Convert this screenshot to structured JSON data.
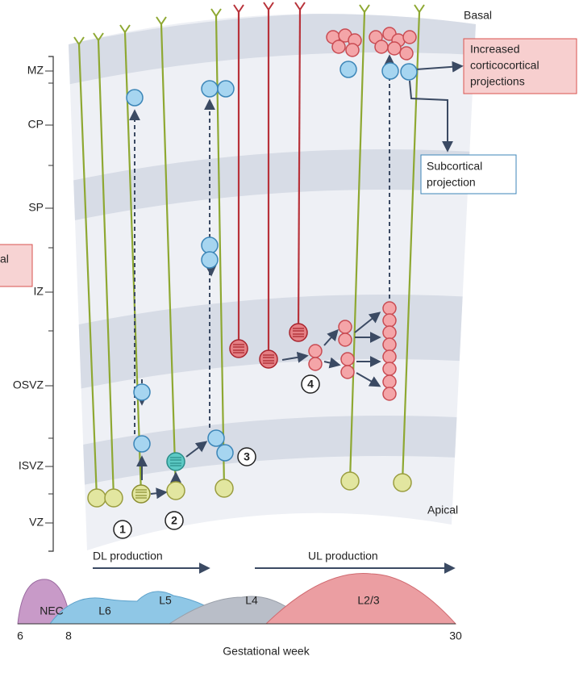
{
  "labels": {
    "basal": "Basal",
    "apical": "Apical",
    "cut_box": "al",
    "corticocortical": [
      "Increased",
      "corticocortical",
      "projections"
    ],
    "subcortical": [
      "Subcortical",
      "projection"
    ]
  },
  "layers": [
    "MZ",
    "CP",
    "SP",
    "IZ",
    "OSVZ",
    "ISVZ",
    "VZ"
  ],
  "steps": [
    1,
    2,
    3,
    4
  ],
  "production": [
    "DL production",
    "UL production"
  ],
  "timeline": {
    "waves": [
      "NEC",
      "L6",
      "L5",
      "L4",
      "L2/3"
    ],
    "ticks": [
      6,
      8,
      30
    ],
    "axis_label": "Gestational week"
  }
}
